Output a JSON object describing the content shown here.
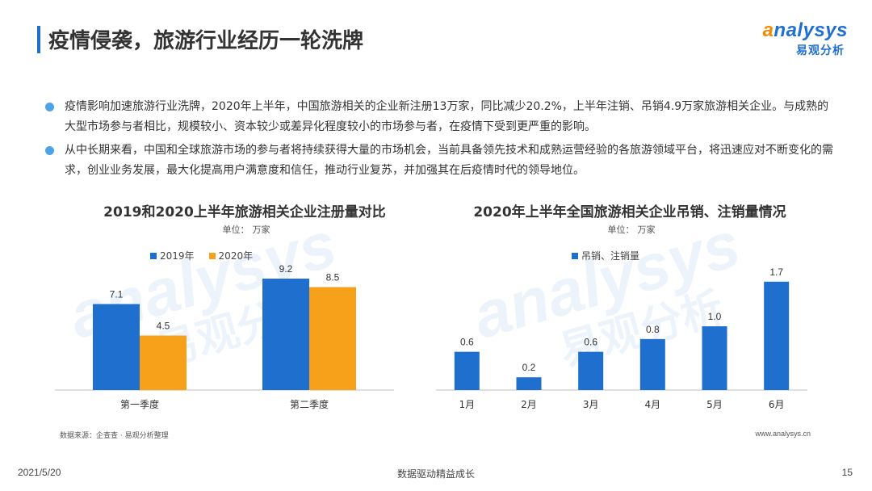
{
  "header": {
    "title": "疫情侵袭，旅游行业经历一轮洗牌",
    "logo_en_lead": "a",
    "logo_en_rest": "nalysys",
    "logo_cn": "易观分析"
  },
  "bullets": [
    "疫情影响加速旅游行业洗牌，2020年上半年，中国旅游相关的企业新注册13万家，同比减少20.2%，上半年注销、吊销4.9万家旅游相关企业。与成熟的大型市场参与者相比，规模较小、资本较少或差异化程度较小的市场参与者，在疫情下受到更严重的影响。",
    "从中长期来看，中国和全球旅游市场的参与者将持续获得大量的市场机会，当前具备领先技术和成熟运营经验的各旅游领域平台，将迅速应对不断变化的需求，创业业务发展，最大化提高用户满意度和信任，推动行业复苏，并加强其在后疫情时代的领导地位。"
  ],
  "colors": {
    "blue": "#1f6fcf",
    "orange": "#f7a11a",
    "bullet": "#4da3e8"
  },
  "chart_data": [
    {
      "type": "bar",
      "title": "2019和2020上半年旅游相关企业注册量对比",
      "unit_label": "单位：",
      "unit": "万家",
      "categories": [
        "第一季度",
        "第二季度"
      ],
      "series": [
        {
          "name": "2019年",
          "color": "#1f6fcf",
          "values": [
            7.1,
            9.2
          ]
        },
        {
          "name": "2020年",
          "color": "#f7a11a",
          "values": [
            4.5,
            8.5
          ]
        }
      ],
      "ylim": [
        0,
        10
      ],
      "grid": false,
      "legend": "top-left"
    },
    {
      "type": "bar",
      "title": "2020年上半年全国旅游相关企业吊销、注销量情况",
      "unit_label": "单位：",
      "unit": "万家",
      "categories": [
        "1月",
        "2月",
        "3月",
        "4月",
        "5月",
        "6月"
      ],
      "series": [
        {
          "name": "吊销、注销量",
          "color": "#1f6fcf",
          "values": [
            0.6,
            0.2,
            0.6,
            0.8,
            1.0,
            1.7
          ]
        }
      ],
      "ylim": [
        0,
        1.9
      ],
      "grid": false,
      "legend": "top-left"
    }
  ],
  "source": "数据来源：企查查 · 易观分析整理",
  "site": "www.analysys.cn",
  "footer": {
    "date": "2021/5/20",
    "slogan": "数据驱动精益成长",
    "page": "15"
  }
}
